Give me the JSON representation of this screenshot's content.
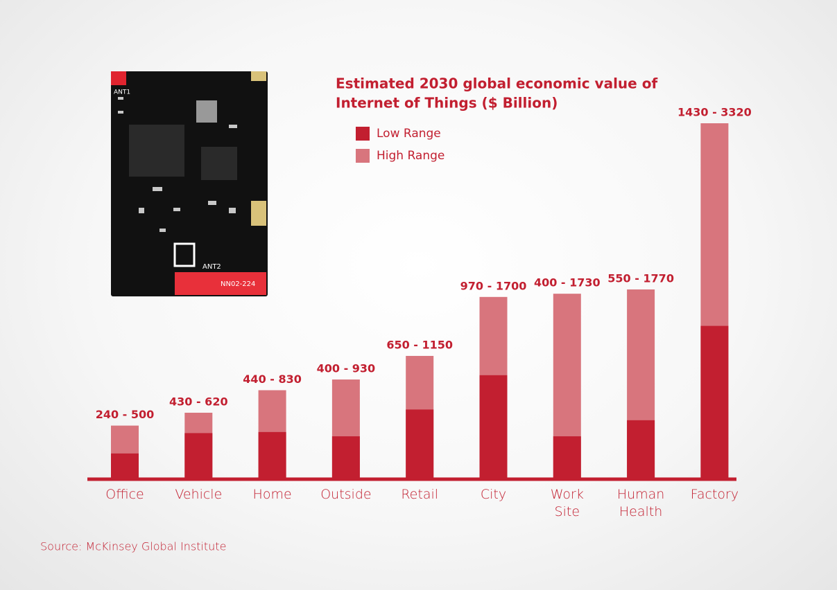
{
  "chart_data": {
    "type": "overlap_bar",
    "title": "Estimated 2030 global economic value of",
    "subtitle": "Internet of Things ($ Billion)",
    "categories": [
      "Office",
      "Vehicle",
      "Home",
      "Outside",
      "Retail",
      "City",
      "Work Site",
      "Human Health",
      "Factory"
    ],
    "series": [
      {
        "name": "Low Range",
        "color": "#c21f30",
        "values": [
          240,
          430,
          440,
          400,
          650,
          970,
          400,
          550,
          1430
        ]
      },
      {
        "name": "High Range",
        "color": "#d8757d",
        "values": [
          500,
          620,
          830,
          930,
          1150,
          1700,
          1730,
          1770,
          3320
        ]
      }
    ],
    "range_labels": [
      "240 - 500",
      "430 - 620",
      "440 - 830",
      "400 - 930",
      "650 - 1150",
      "970 - 1700",
      "400 - 1730",
      "550 - 1770",
      "1430 - 3320"
    ],
    "ylim": [
      0,
      3320
    ],
    "legend": "top-left",
    "source": "Source: McKinsey Global Institute"
  },
  "photo": {
    "labels": [
      "ANT1",
      "ANT2",
      "NN02-224"
    ]
  }
}
